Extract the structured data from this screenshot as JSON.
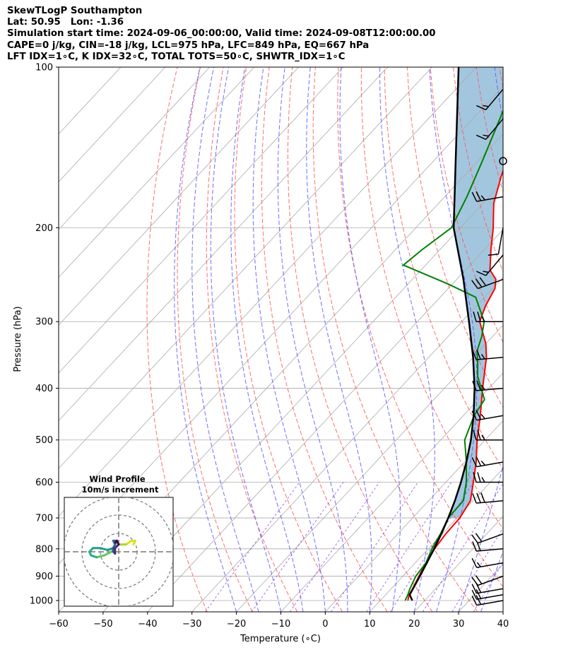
{
  "header": {
    "title": "SkewTLogP Southampton",
    "location": "Lat: 50.95   Lon: -1.36",
    "times": "Simulation start time: 2024-09-06_00:00:00, Valid time: 2024-09-08T12:00:00.00",
    "params1": "CAPE=0 j/kg, CIN=-18 j/kg, LCL=975 hPa, LFC=849 hPa, EQ=667 hPa",
    "params2": "LFT IDX=1∘C, K IDX=32∘C, TOTAL TOTS=50∘C, SHWTR_IDX=1∘C"
  },
  "chart_data": {
    "type": "line",
    "chart_kind": "skew-T log-P",
    "xlabel": "Temperature (∘C)",
    "ylabel": "Pressure (hPa)",
    "xlim": [
      -60,
      40
    ],
    "ylim": [
      1050,
      100
    ],
    "x_ticks": [
      -60,
      -50,
      -40,
      -30,
      -20,
      -10,
      0,
      10,
      20,
      30,
      40
    ],
    "x_tick_labels": [
      "−60",
      "−50",
      "−40",
      "−30",
      "−20",
      "−10",
      "0",
      "10",
      "20",
      "30",
      "40"
    ],
    "y_ticks": [
      1000,
      900,
      800,
      700,
      600,
      500,
      400,
      300,
      200,
      100
    ],
    "y_tick_labels": [
      "1000",
      "900",
      "800",
      "700",
      "600",
      "500",
      "400",
      "300",
      "200",
      "100"
    ],
    "grid": true,
    "colors": {
      "temperature": "#ff0000",
      "dewpoint": "#008000",
      "parcel": "#000000",
      "cape_fill": "#a3c6df",
      "dry_adiabat": "#ff5555",
      "moist_adiabat": "#5555ff",
      "mixing_ratio": "#8a2be2",
      "isotherm": "#aaaaaa"
    },
    "series": [
      {
        "name": "Temperature",
        "points": [
          [
            1000,
            16.2
          ],
          [
            975,
            15.3
          ],
          [
            950,
            14.8
          ],
          [
            900,
            13.6
          ],
          [
            850,
            12.4
          ],
          [
            800,
            11.4
          ],
          [
            750,
            10.8
          ],
          [
            700,
            10.6
          ],
          [
            650,
            9.4
          ],
          [
            600,
            6.2
          ],
          [
            550,
            2.6
          ],
          [
            500,
            -1.8
          ],
          [
            450,
            -6.2
          ],
          [
            400,
            -11.4
          ],
          [
            350,
            -17.0
          ],
          [
            330,
            -20.0
          ],
          [
            300,
            -26.0
          ],
          [
            280,
            -28.0
          ],
          [
            260,
            -29.5
          ],
          [
            250,
            -31.2
          ],
          [
            240,
            -34.5
          ],
          [
            220,
            -38.5
          ],
          [
            200,
            -42.6
          ],
          [
            180,
            -47.6
          ],
          [
            160,
            -51.6
          ],
          [
            140,
            -55.6
          ],
          [
            120,
            -59.9
          ],
          [
            100,
            -65.0
          ]
        ]
      },
      {
        "name": "Dewpoint",
        "points": [
          [
            1000,
            15.6
          ],
          [
            975,
            15.0
          ],
          [
            950,
            14.2
          ],
          [
            900,
            12.9
          ],
          [
            850,
            12.4
          ],
          [
            800,
            10.8
          ],
          [
            750,
            9.6
          ],
          [
            700,
            8.0
          ],
          [
            650,
            7.8
          ],
          [
            600,
            4.6
          ],
          [
            550,
            0.4
          ],
          [
            500,
            -4.6
          ],
          [
            450,
            -7.6
          ],
          [
            420,
            -8.6
          ],
          [
            380,
            -15.0
          ],
          [
            360,
            -17.6
          ],
          [
            340,
            -20.5
          ],
          [
            320,
            -22.4
          ],
          [
            300,
            -25.0
          ],
          [
            270,
            -32.0
          ],
          [
            255,
            -41.0
          ],
          [
            235,
            -55.0
          ],
          [
            220,
            -54.0
          ],
          [
            200,
            -52.0
          ],
          [
            175,
            -55.0
          ],
          [
            150,
            -59.0
          ],
          [
            120,
            -65.0
          ],
          [
            100,
            -72.0
          ]
        ]
      },
      {
        "name": "Parcel",
        "points": [
          [
            1000,
            17.2
          ],
          [
            975,
            15.4
          ],
          [
            950,
            14.9
          ],
          [
            900,
            13.8
          ],
          [
            850,
            12.6
          ],
          [
            800,
            11.3
          ],
          [
            750,
            9.8
          ],
          [
            700,
            8.0
          ],
          [
            650,
            5.9
          ],
          [
            600,
            3.4
          ],
          [
            550,
            0.4
          ],
          [
            500,
            -3.2
          ],
          [
            450,
            -7.7
          ],
          [
            400,
            -13.2
          ],
          [
            350,
            -20.0
          ],
          [
            300,
            -28.4
          ],
          [
            250,
            -38.5
          ],
          [
            200,
            -51.5
          ],
          [
            150,
            -65.0
          ],
          [
            100,
            -84.0
          ]
        ]
      }
    ],
    "annotations": [
      "Wind Profile",
      "10m/s increment"
    ],
    "wind_barbs": [
      {
        "p": 1000,
        "speed_kt": 20,
        "dir_deg": 260
      },
      {
        "p": 975,
        "speed_kt": 20,
        "dir_deg": 260
      },
      {
        "p": 950,
        "speed_kt": 20,
        "dir_deg": 260
      },
      {
        "p": 900,
        "speed_kt": 20,
        "dir_deg": 250
      },
      {
        "p": 850,
        "speed_kt": 15,
        "dir_deg": 260
      },
      {
        "p": 800,
        "speed_kt": 20,
        "dir_deg": 265
      },
      {
        "p": 750,
        "speed_kt": 20,
        "dir_deg": 250
      },
      {
        "p": 650,
        "speed_kt": 30,
        "dir_deg": 265
      },
      {
        "p": 600,
        "speed_kt": 25,
        "dir_deg": 270
      },
      {
        "p": 550,
        "speed_kt": 25,
        "dir_deg": 260
      },
      {
        "p": 500,
        "speed_kt": 25,
        "dir_deg": 270
      },
      {
        "p": 450,
        "speed_kt": 25,
        "dir_deg": 260
      },
      {
        "p": 400,
        "speed_kt": 25,
        "dir_deg": 265
      },
      {
        "p": 350,
        "speed_kt": 25,
        "dir_deg": 265
      },
      {
        "p": 300,
        "speed_kt": 25,
        "dir_deg": 270
      },
      {
        "p": 250,
        "speed_kt": 30,
        "dir_deg": 250
      },
      {
        "p": 225,
        "speed_kt": 15,
        "dir_deg": 220
      },
      {
        "p": 200,
        "speed_kt": 10,
        "dir_deg": 190
      },
      {
        "p": 175,
        "speed_kt": 25,
        "dir_deg": 260
      },
      {
        "p": 150,
        "speed_kt": 0,
        "dir_deg": 0
      },
      {
        "p": 125,
        "speed_kt": 15,
        "dir_deg": 220
      },
      {
        "p": 110,
        "speed_kt": 15,
        "dir_deg": 220
      }
    ],
    "hodograph": {
      "title": "Wind Profile",
      "subtitle": "10m/s increment",
      "rings_ms": [
        10,
        20,
        30
      ],
      "trace_points": [
        [
          8,
          4
        ],
        [
          9,
          6
        ],
        [
          7,
          6
        ],
        [
          4,
          4
        ],
        [
          0,
          4
        ],
        [
          -2,
          2
        ],
        [
          -4,
          0
        ],
        [
          -8,
          -2
        ],
        [
          -12,
          -3
        ],
        [
          -15,
          -2
        ],
        [
          -16,
          0
        ],
        [
          -14,
          2
        ],
        [
          -10,
          2
        ],
        [
          -6,
          1
        ],
        [
          -3,
          2
        ],
        [
          -2,
          4
        ],
        [
          -3,
          6
        ],
        [
          -1,
          6
        ],
        [
          -2,
          4
        ],
        [
          -3,
          2
        ],
        [
          -3,
          0
        ],
        [
          -2,
          -1
        ],
        [
          -2,
          2
        ],
        [
          -1,
          3
        ],
        [
          0,
          4
        ],
        [
          -1,
          6
        ],
        [
          -2,
          5
        ]
      ]
    }
  }
}
